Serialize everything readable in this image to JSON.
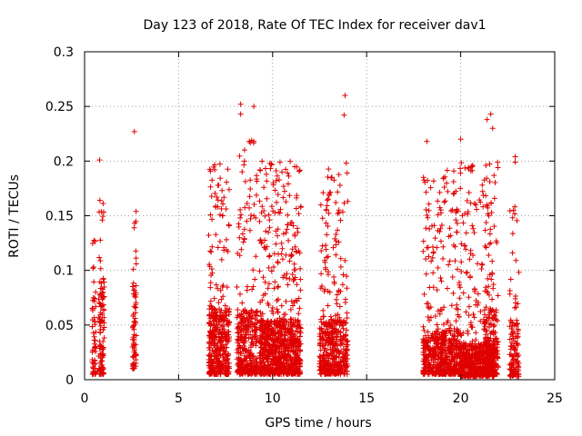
{
  "chart_data": {
    "type": "scatter",
    "title": "Day 123 of 2018, Rate Of TEC Index for receiver dav1",
    "xlabel": "GPS time / hours",
    "ylabel": "ROTI / TECUs",
    "xlim": [
      0,
      25
    ],
    "ylim": [
      0,
      0.3
    ],
    "grid": true,
    "marker": "+",
    "series_color": "#e00000",
    "x_ticks": [
      {
        "value": 0,
        "label": "0"
      },
      {
        "value": 5,
        "label": "5"
      },
      {
        "value": 10,
        "label": "10"
      },
      {
        "value": 15,
        "label": "15"
      },
      {
        "value": 20,
        "label": "20"
      },
      {
        "value": 25,
        "label": "25"
      }
    ],
    "y_ticks": [
      {
        "value": 0,
        "label": "0"
      },
      {
        "value": 0.05,
        "label": "0.05"
      },
      {
        "value": 0.1,
        "label": "0.1"
      },
      {
        "value": 0.15,
        "label": "0.15"
      },
      {
        "value": 0.2,
        "label": "0.2"
      },
      {
        "value": 0.25,
        "label": "0.25"
      },
      {
        "value": 0.3,
        "label": "0.3"
      }
    ],
    "clusters": [
      {
        "x_range": [
          0.4,
          0.6
        ],
        "count": 60,
        "y_base": 0.005,
        "y_spread": 0.07,
        "max_y": 0.14
      },
      {
        "x_range": [
          0.75,
          1.05
        ],
        "count": 110,
        "y_base": 0.005,
        "y_spread": 0.09,
        "max_y": 0.165
      },
      {
        "x_range": [
          2.55,
          2.75
        ],
        "count": 70,
        "y_base": 0.01,
        "y_spread": 0.08,
        "max_y": 0.155
      },
      {
        "x_range": [
          6.6,
          7.7
        ],
        "count": 420,
        "y_base": 0.005,
        "y_spread": 0.06,
        "max_y": 0.2
      },
      {
        "x_range": [
          8.1,
          9.2
        ],
        "count": 340,
        "y_base": 0.005,
        "y_spread": 0.06,
        "max_y": 0.22
      },
      {
        "x_range": [
          9.3,
          11.5
        ],
        "count": 900,
        "y_base": 0.005,
        "y_spread": 0.05,
        "max_y": 0.2
      },
      {
        "x_range": [
          12.5,
          14.0
        ],
        "count": 480,
        "y_base": 0.005,
        "y_spread": 0.05,
        "max_y": 0.2
      },
      {
        "x_range": [
          18.0,
          20.0
        ],
        "count": 650,
        "y_base": 0.005,
        "y_spread": 0.04,
        "max_y": 0.2
      },
      {
        "x_range": [
          20.0,
          21.8
        ],
        "count": 620,
        "y_base": 0.003,
        "y_spread": 0.03,
        "max_y": 0.2
      },
      {
        "x_range": [
          21.2,
          22.0
        ],
        "count": 180,
        "y_base": 0.005,
        "y_spread": 0.06,
        "max_y": 0.2
      },
      {
        "x_range": [
          22.6,
          23.1
        ],
        "count": 120,
        "y_base": 0.003,
        "y_spread": 0.05,
        "max_y": 0.2
      }
    ],
    "notable_points": [
      {
        "x": 0.8,
        "y": 0.201
      },
      {
        "x": 2.65,
        "y": 0.227
      },
      {
        "x": 8.3,
        "y": 0.252
      },
      {
        "x": 8.3,
        "y": 0.243
      },
      {
        "x": 9.0,
        "y": 0.25
      },
      {
        "x": 9.0,
        "y": 0.218
      },
      {
        "x": 13.85,
        "y": 0.26
      },
      {
        "x": 13.8,
        "y": 0.242
      },
      {
        "x": 18.2,
        "y": 0.218
      },
      {
        "x": 20.0,
        "y": 0.22
      },
      {
        "x": 21.6,
        "y": 0.243
      },
      {
        "x": 21.4,
        "y": 0.238
      },
      {
        "x": 21.7,
        "y": 0.23
      },
      {
        "x": 20.6,
        "y": 0.195
      },
      {
        "x": 22.9,
        "y": 0.204
      },
      {
        "x": 22.9,
        "y": 0.199
      },
      {
        "x": 10.5,
        "y": 0.19
      },
      {
        "x": 8.5,
        "y": 0.2
      }
    ]
  }
}
